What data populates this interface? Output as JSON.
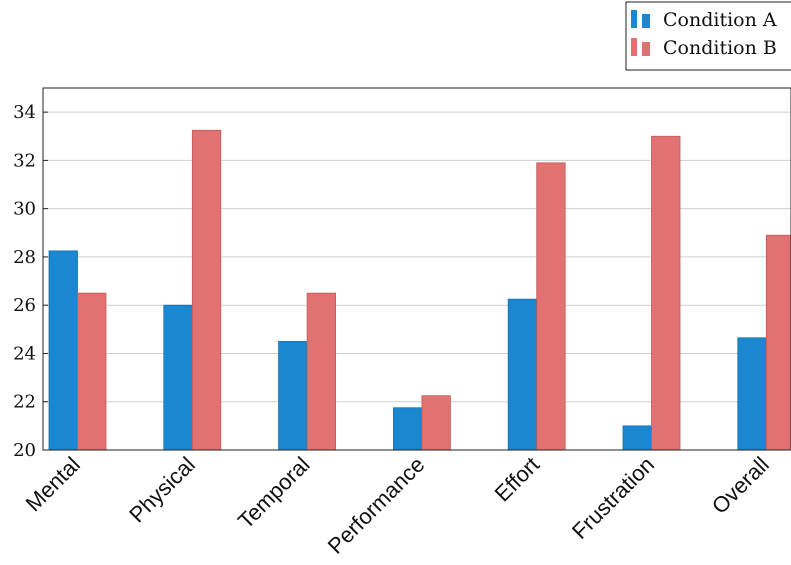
{
  "chart_data": {
    "type": "bar",
    "categories": [
      "Mental",
      "Physical",
      "Temporal",
      "Performance",
      "Effort",
      "Frustration",
      "Overall"
    ],
    "series": [
      {
        "name": "Condition A",
        "color": "#1a88d0",
        "values": [
          28.25,
          26.0,
          24.5,
          21.75,
          26.25,
          21.0,
          24.65
        ]
      },
      {
        "name": "Condition B",
        "color": "#e27171",
        "values": [
          26.5,
          33.25,
          26.5,
          22.25,
          31.9,
          33.0,
          28.9
        ]
      }
    ],
    "ylim": [
      20,
      35
    ],
    "yticks": [
      20,
      22,
      24,
      26,
      28,
      30,
      32,
      34
    ],
    "grid": true,
    "legend": "top-right",
    "title": "",
    "xlabel": "",
    "ylabel": ""
  }
}
